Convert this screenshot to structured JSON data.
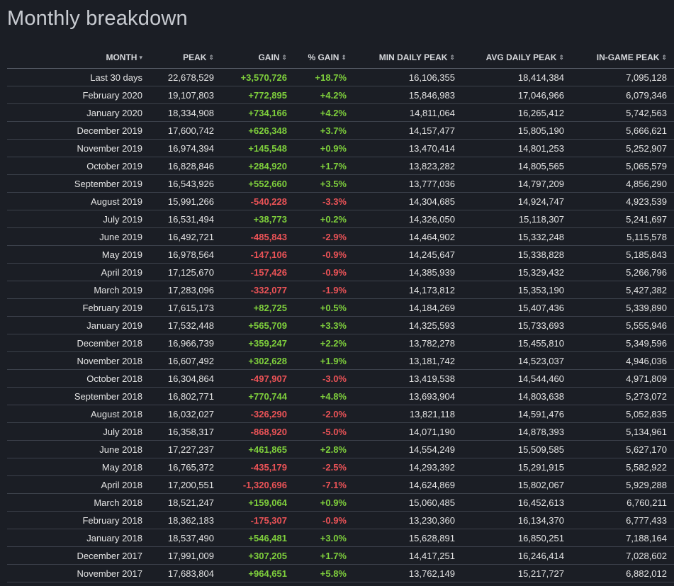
{
  "title": "Monthly breakdown",
  "columns": [
    {
      "label": "MONTH",
      "sort_icon": "caret-down-icon",
      "glyph": "▾"
    },
    {
      "label": "PEAK",
      "sort_icon": "sort-icon",
      "glyph": "⇕"
    },
    {
      "label": "GAIN",
      "sort_icon": "sort-icon",
      "glyph": "⇕"
    },
    {
      "label": "% GAIN",
      "sort_icon": "sort-icon",
      "glyph": "⇕"
    },
    {
      "label": "MIN DAILY PEAK",
      "sort_icon": "sort-icon",
      "glyph": "⇕"
    },
    {
      "label": "AVG DAILY PEAK",
      "sort_icon": "sort-icon",
      "glyph": "⇕"
    },
    {
      "label": "IN-GAME PEAK",
      "sort_icon": "sort-icon",
      "glyph": "⇕"
    }
  ],
  "colors": {
    "positive": "#7fd03c",
    "negative": "#ec5357",
    "background": "#1b1e25"
  },
  "rows": [
    {
      "month": "Last 30 days",
      "peak": "22,678,529",
      "gain": "+3,570,726",
      "pct": "+18.7%",
      "min": "16,106,355",
      "avg": "18,414,384",
      "ingame": "7,095,128"
    },
    {
      "month": "February 2020",
      "peak": "19,107,803",
      "gain": "+772,895",
      "pct": "+4.2%",
      "min": "15,846,983",
      "avg": "17,046,966",
      "ingame": "6,079,346"
    },
    {
      "month": "January 2020",
      "peak": "18,334,908",
      "gain": "+734,166",
      "pct": "+4.2%",
      "min": "14,811,064",
      "avg": "16,265,412",
      "ingame": "5,742,563"
    },
    {
      "month": "December 2019",
      "peak": "17,600,742",
      "gain": "+626,348",
      "pct": "+3.7%",
      "min": "14,157,477",
      "avg": "15,805,190",
      "ingame": "5,666,621"
    },
    {
      "month": "November 2019",
      "peak": "16,974,394",
      "gain": "+145,548",
      "pct": "+0.9%",
      "min": "13,470,414",
      "avg": "14,801,253",
      "ingame": "5,252,907"
    },
    {
      "month": "October 2019",
      "peak": "16,828,846",
      "gain": "+284,920",
      "pct": "+1.7%",
      "min": "13,823,282",
      "avg": "14,805,565",
      "ingame": "5,065,579"
    },
    {
      "month": "September 2019",
      "peak": "16,543,926",
      "gain": "+552,660",
      "pct": "+3.5%",
      "min": "13,777,036",
      "avg": "14,797,209",
      "ingame": "4,856,290"
    },
    {
      "month": "August 2019",
      "peak": "15,991,266",
      "gain": "-540,228",
      "pct": "-3.3%",
      "min": "14,304,685",
      "avg": "14,924,747",
      "ingame": "4,923,539"
    },
    {
      "month": "July 2019",
      "peak": "16,531,494",
      "gain": "+38,773",
      "pct": "+0.2%",
      "min": "14,326,050",
      "avg": "15,118,307",
      "ingame": "5,241,697"
    },
    {
      "month": "June 2019",
      "peak": "16,492,721",
      "gain": "-485,843",
      "pct": "-2.9%",
      "min": "14,464,902",
      "avg": "15,332,248",
      "ingame": "5,115,578"
    },
    {
      "month": "May 2019",
      "peak": "16,978,564",
      "gain": "-147,106",
      "pct": "-0.9%",
      "min": "14,245,647",
      "avg": "15,338,828",
      "ingame": "5,185,843"
    },
    {
      "month": "April 2019",
      "peak": "17,125,670",
      "gain": "-157,426",
      "pct": "-0.9%",
      "min": "14,385,939",
      "avg": "15,329,432",
      "ingame": "5,266,796"
    },
    {
      "month": "March 2019",
      "peak": "17,283,096",
      "gain": "-332,077",
      "pct": "-1.9%",
      "min": "14,173,812",
      "avg": "15,353,190",
      "ingame": "5,427,382"
    },
    {
      "month": "February 2019",
      "peak": "17,615,173",
      "gain": "+82,725",
      "pct": "+0.5%",
      "min": "14,184,269",
      "avg": "15,407,436",
      "ingame": "5,339,890"
    },
    {
      "month": "January 2019",
      "peak": "17,532,448",
      "gain": "+565,709",
      "pct": "+3.3%",
      "min": "14,325,593",
      "avg": "15,733,693",
      "ingame": "5,555,946"
    },
    {
      "month": "December 2018",
      "peak": "16,966,739",
      "gain": "+359,247",
      "pct": "+2.2%",
      "min": "13,782,278",
      "avg": "15,455,810",
      "ingame": "5,349,596"
    },
    {
      "month": "November 2018",
      "peak": "16,607,492",
      "gain": "+302,628",
      "pct": "+1.9%",
      "min": "13,181,742",
      "avg": "14,523,037",
      "ingame": "4,946,036"
    },
    {
      "month": "October 2018",
      "peak": "16,304,864",
      "gain": "-497,907",
      "pct": "-3.0%",
      "min": "13,419,538",
      "avg": "14,544,460",
      "ingame": "4,971,809"
    },
    {
      "month": "September 2018",
      "peak": "16,802,771",
      "gain": "+770,744",
      "pct": "+4.8%",
      "min": "13,693,904",
      "avg": "14,803,638",
      "ingame": "5,273,072"
    },
    {
      "month": "August 2018",
      "peak": "16,032,027",
      "gain": "-326,290",
      "pct": "-2.0%",
      "min": "13,821,118",
      "avg": "14,591,476",
      "ingame": "5,052,835"
    },
    {
      "month": "July 2018",
      "peak": "16,358,317",
      "gain": "-868,920",
      "pct": "-5.0%",
      "min": "14,071,190",
      "avg": "14,878,393",
      "ingame": "5,134,961"
    },
    {
      "month": "June 2018",
      "peak": "17,227,237",
      "gain": "+461,865",
      "pct": "+2.8%",
      "min": "14,554,249",
      "avg": "15,509,585",
      "ingame": "5,627,170"
    },
    {
      "month": "May 2018",
      "peak": "16,765,372",
      "gain": "-435,179",
      "pct": "-2.5%",
      "min": "14,293,392",
      "avg": "15,291,915",
      "ingame": "5,582,922"
    },
    {
      "month": "April 2018",
      "peak": "17,200,551",
      "gain": "-1,320,696",
      "pct": "-7.1%",
      "min": "14,624,869",
      "avg": "15,802,067",
      "ingame": "5,929,288"
    },
    {
      "month": "March 2018",
      "peak": "18,521,247",
      "gain": "+159,064",
      "pct": "+0.9%",
      "min": "15,060,485",
      "avg": "16,452,613",
      "ingame": "6,760,211"
    },
    {
      "month": "February 2018",
      "peak": "18,362,183",
      "gain": "-175,307",
      "pct": "-0.9%",
      "min": "13,230,360",
      "avg": "16,134,370",
      "ingame": "6,777,433"
    },
    {
      "month": "January 2018",
      "peak": "18,537,490",
      "gain": "+546,481",
      "pct": "+3.0%",
      "min": "15,628,891",
      "avg": "16,850,251",
      "ingame": "7,188,164"
    },
    {
      "month": "December 2017",
      "peak": "17,991,009",
      "gain": "+307,205",
      "pct": "+1.7%",
      "min": "14,417,251",
      "avg": "16,246,414",
      "ingame": "7,028,602"
    },
    {
      "month": "November 2017",
      "peak": "17,683,804",
      "gain": "+964,651",
      "pct": "+5.8%",
      "min": "13,762,149",
      "avg": "15,217,727",
      "ingame": "6,882,012"
    }
  ]
}
